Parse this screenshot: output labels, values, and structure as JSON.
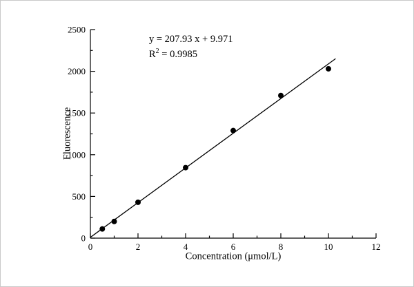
{
  "chart_data": {
    "type": "scatter",
    "title": "",
    "xlabel": "Concentration (μmol/L)",
    "ylabel": "Fluorescence",
    "xlim": [
      0,
      12
    ],
    "ylim": [
      0,
      2500
    ],
    "x_major_tick": 2,
    "x_minor_tick": 1,
    "y_major_tick": 500,
    "y_minor_tick": 250,
    "grid": "off",
    "legend": "none",
    "points": {
      "x": [
        0.5,
        1,
        2,
        4,
        6,
        8,
        10
      ],
      "y": [
        110,
        200,
        430,
        845,
        1290,
        1710,
        2030
      ]
    },
    "fit": {
      "slope": 207.93,
      "intercept": 9.971,
      "x_start": 0,
      "x_end": 10.3
    },
    "annotation": {
      "equation": "y = 207.93 x + 9.971",
      "r2_prefix": "R",
      "r2_sup": "2",
      "r2_suffix": " = 0.9985"
    },
    "colors": {
      "marker": "#000000",
      "line": "#000000",
      "background": "#ffffff"
    }
  }
}
